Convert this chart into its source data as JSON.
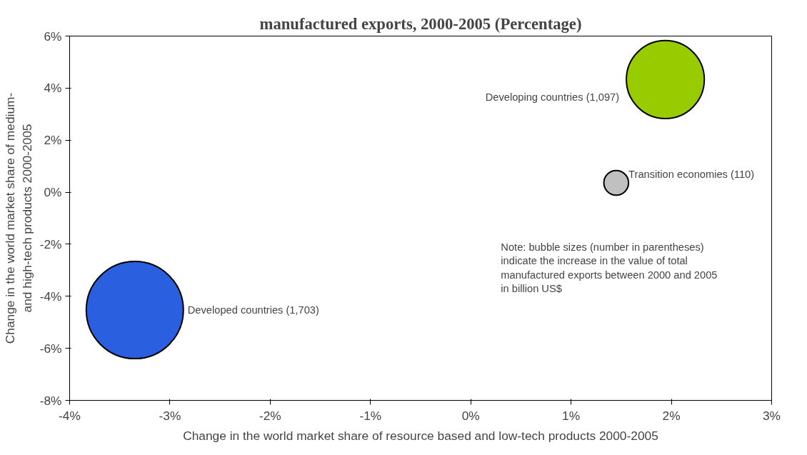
{
  "chart_data": {
    "type": "bubble",
    "title": "manufactured exports, 2000-2005 (Percentage)",
    "xlabel": "Change in the world market share of resource based and low-tech products 2000-2005",
    "ylabel": "Change in the world market share of medium- and high-tech products 2000-2005",
    "series": [
      {
        "name": "Developing countries (1,097)",
        "color": "#99cc00",
        "x": [
          1.94
        ],
        "values": [
          4.33
        ],
        "sizes": [
          0.644
        ]
      },
      {
        "name": "Transition economies (110)",
        "color": "#c0c0c0",
        "x": [
          1.45
        ],
        "values": [
          0.36
        ],
        "sizes": [
          0.0646
        ]
      },
      {
        "name": "Developed countries (1,703)",
        "color": "#2a5fe0",
        "x": [
          -3.35
        ],
        "values": [
          -4.53
        ],
        "sizes": [
          1
        ]
      }
    ],
    "xlim": [
      -4,
      3
    ],
    "xticks": [
      {
        "value": -4,
        "label": "-4%"
      },
      {
        "value": -3,
        "label": "-3%"
      },
      {
        "value": -2,
        "label": "-2%"
      },
      {
        "value": -1,
        "label": "-1%"
      },
      {
        "value": 0,
        "label": "0%"
      },
      {
        "value": 1,
        "label": "1%"
      },
      {
        "value": 2,
        "label": "2%"
      },
      {
        "value": 3,
        "label": "3%"
      }
    ],
    "ylim": [
      -8,
      6
    ],
    "yticks": [
      {
        "value": -8,
        "label": "-8%"
      },
      {
        "value": -6,
        "label": "-6%"
      },
      {
        "value": -4,
        "label": "-4%"
      },
      {
        "value": -2,
        "label": "-2%"
      },
      {
        "value": 0,
        "label": "0%"
      },
      {
        "value": 2,
        "label": "2%"
      },
      {
        "value": 4,
        "label": "4%"
      },
      {
        "value": 6,
        "label": "6%"
      }
    ],
    "grid": false,
    "annotations": [
      "Note: bubble sizes (number in parentheses) indicate the increase in the value of total manufactured exports between 2000 and 2005 in billion US$"
    ]
  }
}
